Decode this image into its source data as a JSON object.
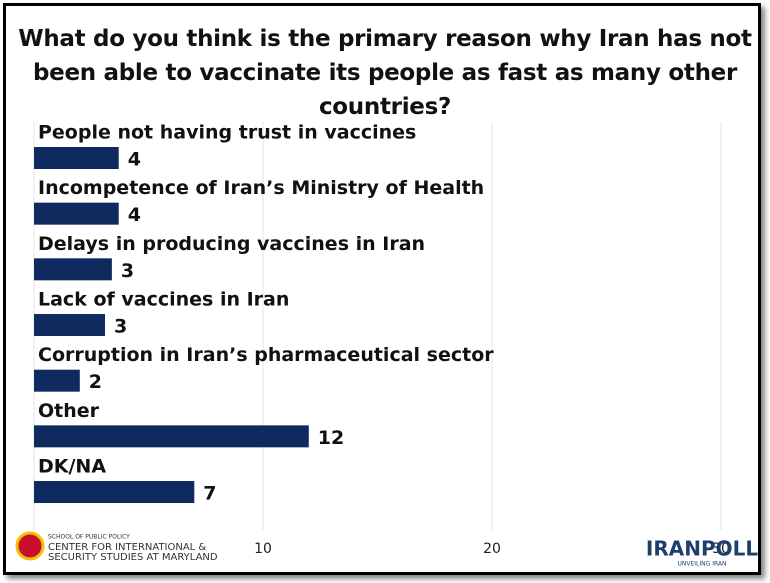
{
  "chart_data": {
    "type": "barh",
    "title": "What do you think is the primary reason why Iran has not been able to vaccinate its people as fast as many other countries?",
    "categories": [
      "People not having trust in vaccines",
      "Incompetence of Iran’s Ministry of Health",
      "Delays in producing vaccines in Iran",
      "Lack of vaccines in Iran",
      "Corruption in Iran’s pharmaceutical sector",
      "Other",
      "DK/NA"
    ],
    "values": [
      3.7,
      3.7,
      3.4,
      3.1,
      2,
      12,
      7
    ],
    "value_labels": [
      "4",
      "4",
      "3",
      "3",
      "2",
      "12",
      "7"
    ],
    "color": "#0f2a5e",
    "xlim": [
      0,
      30
    ],
    "xticks": [
      10,
      20,
      30
    ],
    "grid": true,
    "logos": {
      "left": [
        "SCHOOL OF PUBLIC POLICY",
        "CENTER FOR INTERNATIONAL &",
        "SECURITY STUDIES AT MARYLAND"
      ],
      "right": [
        "IRANPOLL",
        "UNVEILING IRAN"
      ]
    }
  }
}
